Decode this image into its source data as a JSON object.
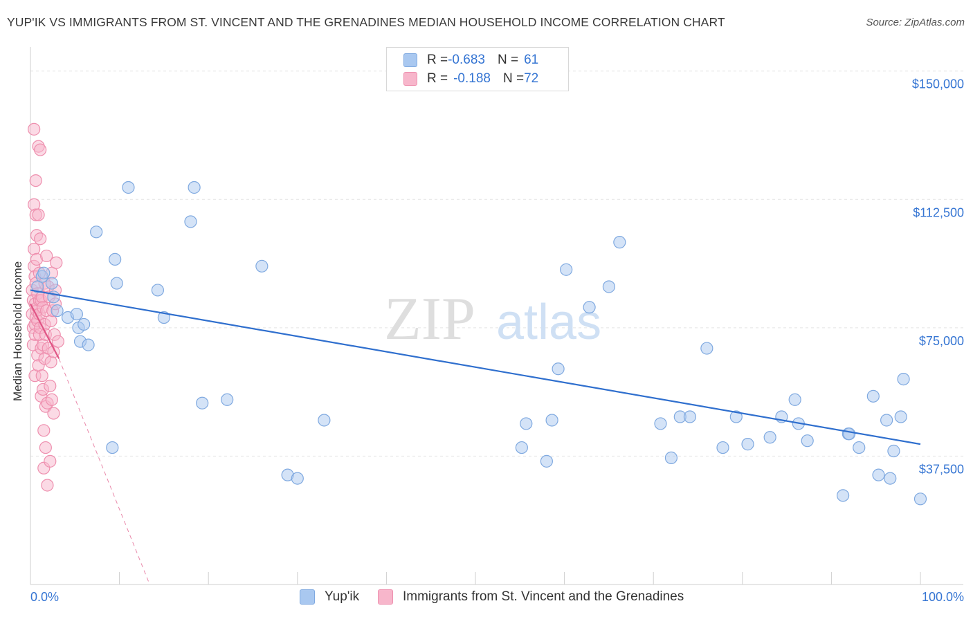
{
  "title": "YUP'IK VS IMMIGRANTS FROM ST. VINCENT AND THE GRENADINES MEDIAN HOUSEHOLD INCOME CORRELATION CHART",
  "source": "Source: ZipAtlas.com",
  "watermark": {
    "zip": "ZIP",
    "atlas": "atlas"
  },
  "legend_top": {
    "rows": [
      {
        "r_label": "R = ",
        "r_value": "-0.683",
        "n_label": "N = ",
        "n_value": "61",
        "color": "#a9c8f0"
      },
      {
        "r_label": "R = ",
        "r_value": "-0.188",
        "n_label": "N = ",
        "n_value": "72",
        "color": "#f7b6cb"
      }
    ]
  },
  "legend_bottom": [
    {
      "label": "Yup'ik",
      "color": "#a9c8f0"
    },
    {
      "label": "Immigrants from St. Vincent and the Grenadines",
      "color": "#f7b6cb"
    }
  ],
  "colors": {
    "blue_fill": "#a9c8f0",
    "blue_stroke": "#7fa9e0",
    "blue_line": "#2f6fce",
    "pink_fill": "#f7b6cb",
    "pink_stroke": "#ee8fae",
    "pink_line": "#e05585",
    "axis_label": "#3575d3",
    "grid": "#e3e3e3"
  },
  "chart_data": {
    "type": "scatter",
    "title": "YUP'IK VS IMMIGRANTS FROM ST. VINCENT AND THE GRENADINES MEDIAN HOUSEHOLD INCOME CORRELATION CHART",
    "xlabel": "",
    "ylabel": "Median Household Income",
    "xlim": [
      0,
      100
    ],
    "ylim": [
      0,
      155000
    ],
    "x_tick_labels": [
      "0.0%",
      "100.0%"
    ],
    "y_ticks": [
      37500,
      75000,
      112500,
      150000
    ],
    "y_tick_labels": [
      "$37,500",
      "$75,000",
      "$112,500",
      "$150,000"
    ],
    "grid": true,
    "legend_position": "top-center",
    "series": [
      {
        "name": "Yup'ik",
        "x": [
          0.8,
          1.3,
          1.5,
          2.4,
          2.6,
          3.0,
          4.2,
          5.2,
          5.4,
          5.6,
          6.0,
          6.5,
          7.4,
          9.2,
          9.5,
          9.7,
          11.0,
          14.3,
          15.0,
          18.0,
          18.4,
          19.3,
          22.1,
          26.0,
          28.9,
          30.0,
          33.0,
          55.2,
          55.7,
          58.0,
          58.6,
          59.3,
          60.2,
          62.8,
          65.0,
          66.2,
          70.8,
          72.0,
          73.0,
          74.1,
          76.0,
          77.8,
          79.3,
          80.6,
          83.1,
          84.4,
          85.9,
          86.3,
          87.3,
          91.3,
          91.9,
          92.0,
          93.1,
          94.7,
          95.3,
          96.2,
          96.6,
          97.0,
          97.8,
          98.1,
          100.0
        ],
        "y": [
          87000,
          90000,
          91000,
          88000,
          84000,
          80000,
          78000,
          79000,
          75000,
          71000,
          76000,
          70000,
          103000,
          40000,
          95000,
          88000,
          116000,
          86000,
          78000,
          106000,
          116000,
          53000,
          54000,
          93000,
          32000,
          31000,
          48000,
          40000,
          47000,
          36000,
          48000,
          63000,
          92000,
          81000,
          87000,
          100000,
          47000,
          37000,
          49000,
          49000,
          69000,
          40000,
          49000,
          41000,
          43000,
          49000,
          54000,
          47000,
          42000,
          26000,
          44000,
          44000,
          40000,
          55000,
          32000,
          48000,
          31000,
          39000,
          49000,
          60000,
          25000
        ],
        "trend": {
          "x": [
            0,
            100
          ],
          "y": [
            86000,
            41000
          ]
        }
      },
      {
        "name": "Immigrants from St. Vincent and the Grenadines",
        "x": [
          0.2,
          0.2,
          0.3,
          0.3,
          0.3,
          0.4,
          0.4,
          0.4,
          0.4,
          0.5,
          0.5,
          0.5,
          0.5,
          0.5,
          0.6,
          0.6,
          0.6,
          0.6,
          0.7,
          0.7,
          0.7,
          0.8,
          0.8,
          0.8,
          0.8,
          0.9,
          0.9,
          0.9,
          1.0,
          1.0,
          1.0,
          1.0,
          1.1,
          1.1,
          1.1,
          1.2,
          1.2,
          1.2,
          1.3,
          1.3,
          1.4,
          1.4,
          1.4,
          1.5,
          1.5,
          1.6,
          1.6,
          1.6,
          1.7,
          1.7,
          1.7,
          1.8,
          1.8,
          1.9,
          1.9,
          2.0,
          2.0,
          2.1,
          2.2,
          2.2,
          2.3,
          2.3,
          2.4,
          2.4,
          2.5,
          2.6,
          2.6,
          2.7,
          2.8,
          2.8,
          2.9,
          3.1
        ],
        "y": [
          79000,
          86000,
          83000,
          75000,
          70000,
          93000,
          133000,
          111000,
          98000,
          90000,
          82000,
          76000,
          73000,
          61000,
          118000,
          108000,
          88000,
          78000,
          102000,
          95000,
          80000,
          85000,
          81000,
          77000,
          67000,
          128000,
          108000,
          64000,
          91000,
          83000,
          79000,
          73000,
          127000,
          101000,
          75000,
          83000,
          69000,
          55000,
          84000,
          61000,
          81000,
          70000,
          57000,
          45000,
          34000,
          88000,
          76000,
          66000,
          73000,
          52000,
          40000,
          96000,
          80000,
          53000,
          29000,
          87000,
          69000,
          84000,
          58000,
          36000,
          65000,
          77000,
          91000,
          54000,
          80000,
          68000,
          50000,
          73000,
          86000,
          82000,
          94000,
          71000
        ],
        "trend_solid": {
          "x": [
            0,
            3.2
          ],
          "y": [
            82000,
            66000
          ]
        },
        "trend_dashed": {
          "x": [
            3.2,
            13.4
          ],
          "y": [
            66000,
            0
          ]
        }
      }
    ]
  }
}
